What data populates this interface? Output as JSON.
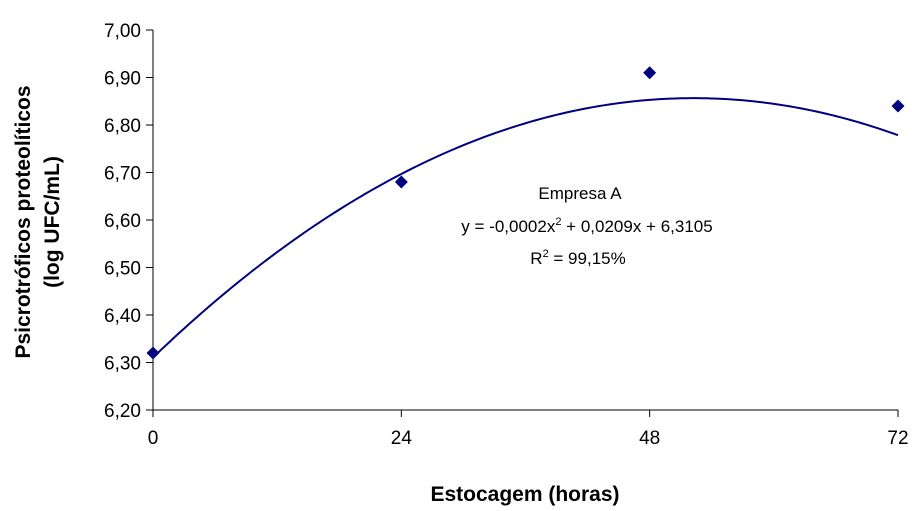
{
  "chart_data": {
    "type": "scatter",
    "xlabel": "Estocagem (horas)",
    "ylabel_lines": [
      "Psicrotróficos proteolíticos",
      "(log UFC/mL)"
    ],
    "xlim": [
      0,
      72
    ],
    "ylim": [
      6.2,
      7.0
    ],
    "xticks": [
      0,
      24,
      48,
      72
    ],
    "xtick_labels": [
      "0",
      "24",
      "48",
      "72"
    ],
    "yticks": [
      6.2,
      6.3,
      6.4,
      6.5,
      6.6,
      6.7,
      6.8,
      6.9,
      7.0
    ],
    "ytick_labels": [
      "6,20",
      "6,30",
      "6,40",
      "6,50",
      "6,60",
      "6,70",
      "6,80",
      "6,90",
      "7,00"
    ],
    "grid": false,
    "series": [
      {
        "name": "Empresa A",
        "marker": "diamond",
        "color": "#000080",
        "x": [
          0,
          24,
          48,
          72
        ],
        "y": [
          6.32,
          6.68,
          6.91,
          6.84
        ]
      }
    ],
    "trendline": {
      "type": "polynomial",
      "order": 2,
      "color": "#000080",
      "coefficients": [
        -0.0002,
        0.0209,
        6.3105
      ]
    },
    "annotation": {
      "series_label": "Empresa A",
      "equation_prefix": "y = -0,0002x",
      "equation_exp": "2",
      "equation_suffix": " + 0,0209x + 6,3105",
      "r2_prefix": "R",
      "r2_exp": "2",
      "r2_suffix": " = 99,15%"
    }
  }
}
